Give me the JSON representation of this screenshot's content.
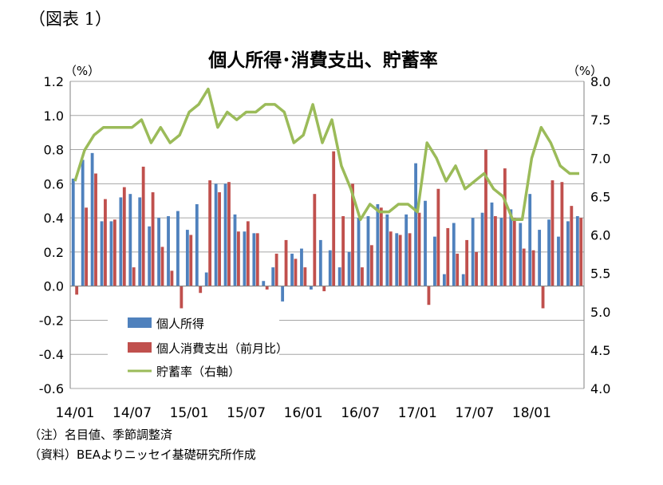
{
  "figure_label": "（図表 1）",
  "notes": [
    "（注）名目値、季節調整済",
    "（資料）BEAよりニッセイ基礎研究所作成"
  ],
  "colors": {
    "income": "#4f81bd",
    "consumption": "#c0504d",
    "saving": "#9bbb59",
    "grid": "#a6a6a6",
    "axis": "#808080"
  },
  "chart_data": {
    "type": "bar",
    "title": "個人所得･消費支出、貯蓄率",
    "y_left": {
      "unit_label": "（%）",
      "ylim": [
        -0.6,
        1.2
      ],
      "ticks": [
        "1.2",
        "1.0",
        "0.8",
        "0.6",
        "0.4",
        "0.2",
        "0.0",
        "-0.2",
        "-0.4",
        "-0.6"
      ]
    },
    "y_right": {
      "unit_label": "（%）",
      "ylim": [
        4.0,
        8.0
      ],
      "ticks": [
        "8.0",
        "7.5",
        "7.0",
        "6.5",
        "6.0",
        "5.5",
        "5.0",
        "4.5",
        "4.0"
      ]
    },
    "x_tick_labels": [
      "14/01",
      "14/07",
      "15/01",
      "15/07",
      "16/01",
      "16/07",
      "17/01",
      "17/07",
      "18/01"
    ],
    "x_tick_every": 6,
    "categories": [
      "14/01",
      "14/02",
      "14/03",
      "14/04",
      "14/05",
      "14/06",
      "14/07",
      "14/08",
      "14/09",
      "14/10",
      "14/11",
      "14/12",
      "15/01",
      "15/02",
      "15/03",
      "15/04",
      "15/05",
      "15/06",
      "15/07",
      "15/08",
      "15/09",
      "15/10",
      "15/11",
      "15/12",
      "16/01",
      "16/02",
      "16/03",
      "16/04",
      "16/05",
      "16/06",
      "16/07",
      "16/08",
      "16/09",
      "16/10",
      "16/11",
      "16/12",
      "17/01",
      "17/02",
      "17/03",
      "17/04",
      "17/05",
      "17/06",
      "17/07",
      "17/08",
      "17/09",
      "17/10",
      "17/11",
      "17/12",
      "18/01",
      "18/02",
      "18/03",
      "18/04",
      "18/05",
      "18/06"
    ],
    "series": [
      {
        "name": "個人所得",
        "type": "bar",
        "axis": "left",
        "values": [
          0.63,
          0.74,
          0.78,
          0.38,
          0.38,
          0.52,
          0.54,
          0.52,
          0.35,
          0.4,
          0.41,
          0.44,
          0.33,
          0.48,
          0.08,
          0.6,
          0.6,
          0.42,
          0.32,
          0.31,
          0.03,
          0.11,
          -0.09,
          0.19,
          0.22,
          -0.02,
          0.27,
          0.21,
          0.11,
          0.2,
          0.4,
          0.41,
          0.48,
          0.42,
          0.31,
          0.42,
          0.72,
          0.5,
          0.29,
          0.07,
          0.37,
          0.07,
          0.4,
          0.43,
          0.49,
          0.4,
          0.45,
          0.37,
          0.54,
          0.33,
          0.39,
          0.29,
          0.38,
          0.41
        ]
      },
      {
        "name": "個人消費支出（前月比）",
        "type": "bar",
        "axis": "left",
        "values": [
          -0.05,
          0.46,
          0.66,
          0.51,
          0.39,
          0.58,
          0.11,
          0.7,
          0.55,
          0.23,
          0.09,
          -0.13,
          0.3,
          -0.04,
          0.62,
          0.55,
          0.61,
          0.32,
          0.38,
          0.31,
          -0.02,
          0.19,
          0.27,
          0.16,
          0.11,
          0.54,
          -0.03,
          0.79,
          0.41,
          0.6,
          0.11,
          0.24,
          0.46,
          0.32,
          0.3,
          0.31,
          0.43,
          -0.11,
          0.57,
          0.34,
          0.19,
          0.27,
          0.2,
          0.8,
          0.41,
          0.69,
          0.4,
          0.22,
          0.21,
          -0.13,
          0.62,
          0.61,
          0.47,
          0.4
        ]
      },
      {
        "name": "貯蓄率（右軸）",
        "type": "line",
        "axis": "right",
        "values": [
          6.7,
          7.1,
          7.3,
          7.4,
          7.4,
          7.4,
          7.4,
          7.5,
          7.2,
          7.4,
          7.2,
          7.3,
          7.6,
          7.7,
          7.9,
          7.4,
          7.6,
          7.5,
          7.6,
          7.6,
          7.7,
          7.7,
          7.6,
          7.2,
          7.3,
          7.7,
          7.2,
          7.5,
          6.9,
          6.6,
          6.2,
          6.4,
          6.3,
          6.3,
          6.4,
          6.4,
          6.3,
          7.2,
          7.0,
          6.7,
          6.9,
          6.6,
          6.7,
          6.8,
          6.6,
          6.5,
          6.2,
          6.2,
          7.0,
          7.4,
          7.2,
          6.9,
          6.8,
          6.8
        ]
      }
    ],
    "legend_position": "bottom-left inside"
  }
}
